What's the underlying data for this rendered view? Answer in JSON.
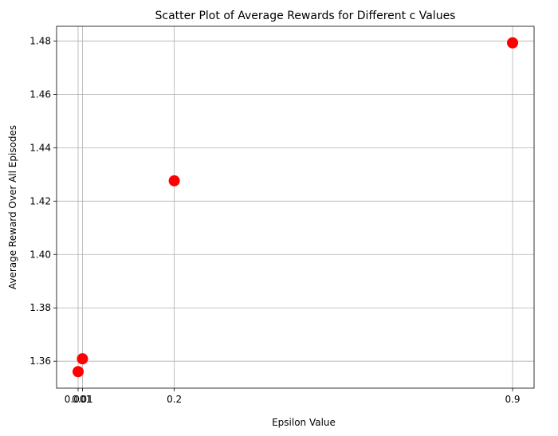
{
  "chart_data": {
    "type": "scatter",
    "title": "Scatter Plot of Average Rewards for Different c Values",
    "xlabel": "Epsilon Value",
    "ylabel": "Average Reward Over All Episodes",
    "x_ticks": [
      {
        "value": 0.001,
        "label": "0.001"
      },
      {
        "value": 0.01,
        "label": "0.01"
      },
      {
        "value": 0.2,
        "label": "0.2"
      },
      {
        "value": 0.9,
        "label": "0.9"
      }
    ],
    "y_ticks": [
      {
        "value": 1.36,
        "label": "1.36"
      },
      {
        "value": 1.38,
        "label": "1.38"
      },
      {
        "value": 1.4,
        "label": "1.40"
      },
      {
        "value": 1.42,
        "label": "1.42"
      },
      {
        "value": 1.44,
        "label": "1.44"
      },
      {
        "value": 1.46,
        "label": "1.46"
      },
      {
        "value": 1.48,
        "label": "1.48"
      }
    ],
    "xlim": [
      -0.0435,
      0.9445
    ],
    "ylim": [
      1.3499,
      1.4855
    ],
    "grid": true,
    "series": [
      {
        "color": "#ff0000",
        "points": [
          {
            "x": 0.001,
            "y": 1.3561
          },
          {
            "x": 0.01,
            "y": 1.3609
          },
          {
            "x": 0.2,
            "y": 1.4276
          },
          {
            "x": 0.9,
            "y": 1.4793
          }
        ]
      }
    ]
  }
}
